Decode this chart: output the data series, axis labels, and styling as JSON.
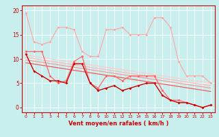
{
  "bg_color": "#c8eeee",
  "grid_color": "#ffffff",
  "xlabel": "Vent moyen/en rafales ( km/h )",
  "xlabel_color": "#cc0000",
  "tick_color": "#cc0000",
  "axis_color": "#cc0000",
  "xlim": [
    -0.5,
    23.5
  ],
  "ylim": [
    -1,
    21
  ],
  "yticks": [
    0,
    5,
    10,
    15,
    20
  ],
  "xticks": [
    0,
    1,
    2,
    3,
    4,
    5,
    6,
    7,
    8,
    9,
    10,
    11,
    12,
    13,
    14,
    15,
    16,
    17,
    18,
    19,
    20,
    21,
    22,
    23
  ],
  "series": [
    {
      "x": [
        0,
        1,
        2,
        3,
        4,
        5,
        6,
        7,
        8,
        9,
        10,
        11,
        12,
        13,
        14,
        15,
        16,
        17,
        18,
        19,
        20,
        21,
        22,
        23
      ],
      "y": [
        19.5,
        13.5,
        13.0,
        13.5,
        16.5,
        16.5,
        16.0,
        11.5,
        10.5,
        10.5,
        16.0,
        16.0,
        16.5,
        15.0,
        15.0,
        15.0,
        18.5,
        18.5,
        16.5,
        9.5,
        6.5,
        6.5,
        6.5,
        5.0
      ],
      "color": "#ffaaaa",
      "lw": 0.9,
      "marker": "o",
      "ms": 2.2
    },
    {
      "x": [
        0,
        1,
        2,
        3,
        4,
        5,
        6,
        7,
        8,
        9,
        10,
        11,
        12,
        13,
        14,
        15,
        16,
        17,
        18,
        19,
        20,
        21,
        22,
        23
      ],
      "y": [
        11.5,
        11.5,
        11.5,
        6.5,
        5.0,
        5.5,
        9.5,
        10.5,
        5.0,
        4.0,
        6.5,
        6.5,
        5.5,
        6.5,
        6.5,
        6.5,
        6.5,
        3.5,
        1.5,
        1.5,
        1.0,
        0.5,
        0.0,
        0.5
      ],
      "color": "#ff6666",
      "lw": 0.9,
      "marker": "o",
      "ms": 2.2
    },
    {
      "x": [
        0,
        1,
        2,
        3,
        4,
        5,
        6,
        7,
        8,
        9,
        10,
        11,
        12,
        13,
        14,
        15,
        16,
        17,
        18,
        19,
        20,
        21,
        22,
        23
      ],
      "y": [
        11.0,
        7.5,
        6.5,
        5.5,
        5.5,
        5.0,
        9.0,
        9.0,
        5.0,
        3.5,
        4.0,
        4.5,
        3.5,
        4.0,
        4.5,
        5.0,
        5.0,
        2.5,
        1.5,
        1.0,
        1.0,
        0.5,
        0.0,
        0.5
      ],
      "color": "#cc0000",
      "lw": 1.0,
      "marker": "D",
      "ms": 2.0
    },
    {
      "x": [
        0,
        23
      ],
      "y": [
        10.8,
        5.0
      ],
      "color": "#ffcccc",
      "lw": 0.9,
      "marker": null,
      "ms": 0
    },
    {
      "x": [
        0,
        23
      ],
      "y": [
        10.3,
        4.5
      ],
      "color": "#ffbbbb",
      "lw": 0.9,
      "marker": null,
      "ms": 0
    },
    {
      "x": [
        0,
        23
      ],
      "y": [
        9.8,
        4.0
      ],
      "color": "#ff9999",
      "lw": 0.9,
      "marker": null,
      "ms": 0
    },
    {
      "x": [
        0,
        23
      ],
      "y": [
        9.2,
        3.3
      ],
      "color": "#ff5555",
      "lw": 0.9,
      "marker": null,
      "ms": 0
    }
  ]
}
